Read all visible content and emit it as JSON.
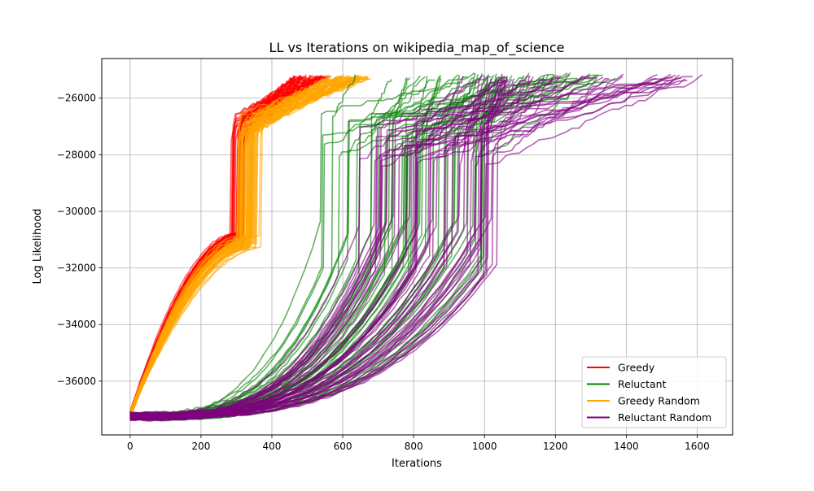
{
  "chart_data": {
    "type": "line",
    "title": "LL vs Iterations on wikipedia_map_of_science",
    "xlabel": "Iterations",
    "ylabel": "Log Likelihood",
    "xlim": [
      -80,
      1700
    ],
    "ylim": [
      -37900,
      -24600
    ],
    "xticks": [
      0,
      200,
      400,
      600,
      800,
      1000,
      1200,
      1400,
      1600
    ],
    "yticks": [
      -36000,
      -34000,
      -32000,
      -30000,
      -28000,
      -26000
    ],
    "grid": true,
    "legend_position": "lower-right",
    "series": [
      {
        "name": "Greedy",
        "color": "#ff0000",
        "runs": 50,
        "start_ll": -37200,
        "end_ll": -25250,
        "jump_iteration_range": [
          280,
          325
        ],
        "ll_before_jump": -31000,
        "ll_after_jump": -27000,
        "final_iteration_range": [
          460,
          560
        ]
      },
      {
        "name": "Reluctant",
        "color": "#008000",
        "runs": 50,
        "start_ll": -37250,
        "end_ll": -25250,
        "jump_iteration_range": [
          530,
          1000
        ],
        "ll_before_jump": -31200,
        "ll_after_jump": -27300,
        "final_iteration_range": [
          600,
          1370
        ]
      },
      {
        "name": "Greedy Random",
        "color": "#ffa500",
        "runs": 50,
        "start_ll": -37200,
        "end_ll": -25250,
        "jump_iteration_range": [
          300,
          370
        ],
        "ll_before_jump": -31100,
        "ll_after_jump": -27000,
        "final_iteration_range": [
          560,
          680
        ]
      },
      {
        "name": "Reluctant Random",
        "color": "#800080",
        "runs": 50,
        "start_ll": -37250,
        "end_ll": -25300,
        "jump_iteration_range": [
          640,
          1040
        ],
        "ll_before_jump": -31200,
        "ll_after_jump": -27600,
        "final_iteration_range": [
          880,
          1620
        ]
      }
    ]
  }
}
